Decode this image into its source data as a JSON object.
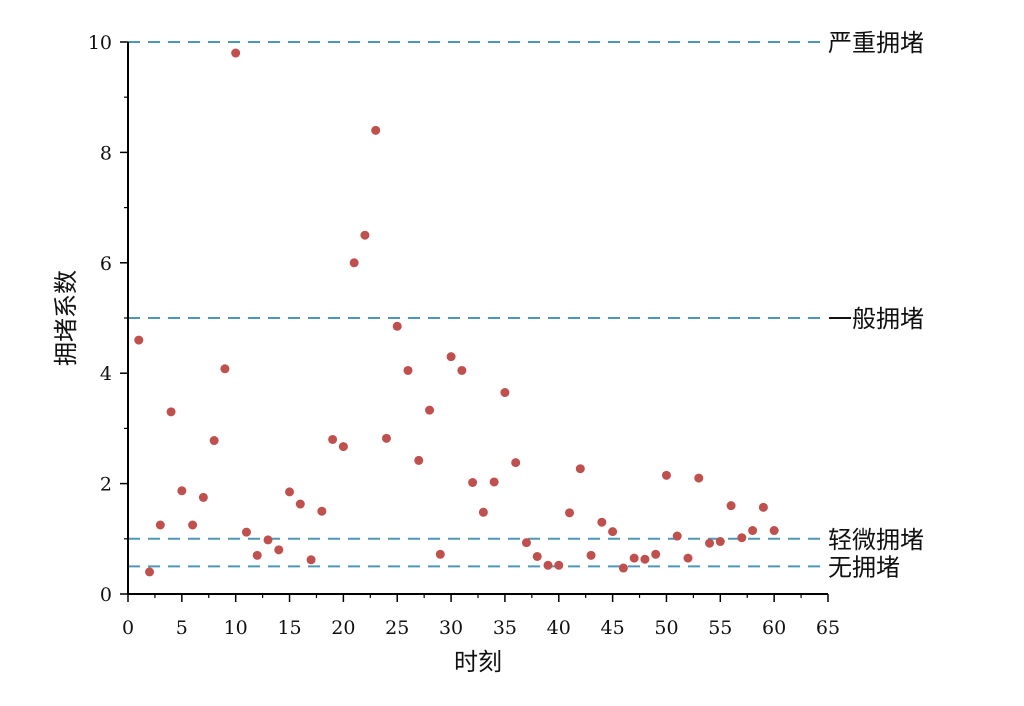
{
  "chart_data": {
    "type": "scatter",
    "xlabel": "时刻",
    "ylabel": "拥堵系数",
    "xlim": [
      0,
      65
    ],
    "ylim": [
      0,
      10
    ],
    "x_ticks": [
      "0",
      "5",
      "10",
      "15",
      "20",
      "25",
      "30",
      "35",
      "40",
      "45",
      "50",
      "55",
      "60",
      "65"
    ],
    "y_ticks": [
      "0",
      "2",
      "4",
      "6",
      "8",
      "10"
    ],
    "grid": false,
    "point_color": "#c0504d",
    "reference_line_color": "#4f97b7",
    "reference_lines": [
      {
        "y": 10,
        "label": "严重拥堵"
      },
      {
        "y": 5,
        "label": "一般拥堵"
      },
      {
        "y": 1,
        "label": "轻微拥堵"
      },
      {
        "y": 0.5,
        "label": "无拥堵"
      }
    ],
    "series": [
      {
        "x": [
          1,
          2,
          3,
          4,
          5,
          6,
          7,
          8,
          9,
          10,
          11,
          12,
          13,
          14,
          15,
          16,
          17,
          18,
          19,
          20,
          21,
          22,
          23,
          24,
          25,
          26,
          27,
          28,
          29,
          30,
          31,
          32,
          33,
          34,
          35,
          36,
          37,
          38,
          39,
          40,
          41,
          42,
          43,
          44,
          45,
          46,
          47,
          48,
          49,
          50,
          51,
          52,
          53,
          54,
          55,
          56,
          57,
          58,
          59,
          60
        ],
        "y": [
          4.6,
          0.4,
          1.25,
          3.3,
          1.87,
          1.25,
          1.75,
          2.78,
          4.08,
          9.8,
          1.12,
          0.7,
          0.98,
          0.8,
          1.85,
          1.63,
          0.62,
          1.5,
          2.8,
          2.67,
          6.0,
          6.5,
          8.4,
          2.82,
          4.85,
          4.05,
          2.42,
          3.33,
          0.72,
          4.3,
          4.05,
          2.02,
          1.48,
          2.03,
          3.65,
          2.38,
          0.93,
          0.68,
          0.52,
          0.52,
          1.47,
          2.27,
          0.7,
          1.3,
          1.13,
          0.47,
          0.65,
          0.63,
          0.72,
          2.15,
          1.05,
          0.65,
          2.1,
          0.92,
          0.95,
          1.6,
          1.02,
          1.15,
          1.57,
          1.15
        ]
      }
    ]
  }
}
